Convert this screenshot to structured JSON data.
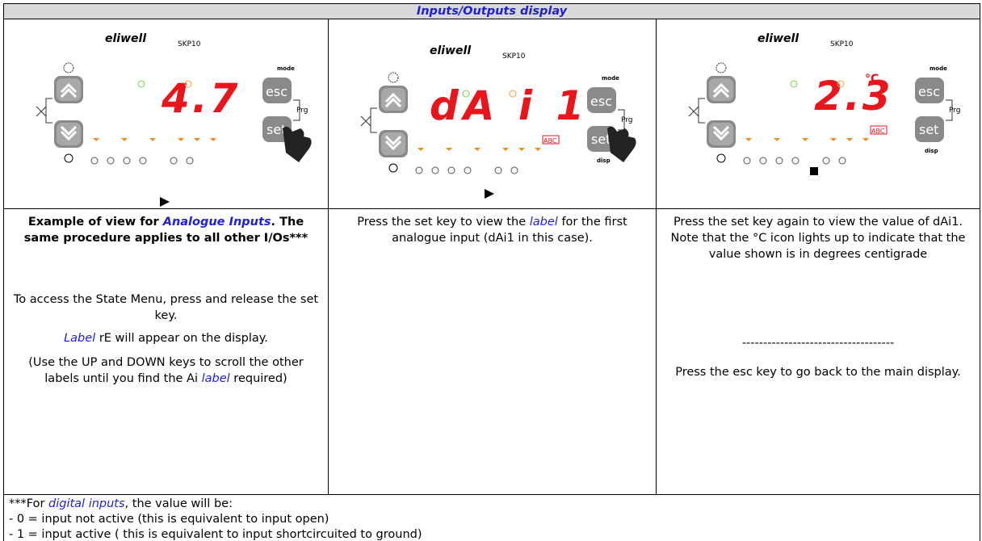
{
  "header": {
    "title": "Inputs/Outputs display"
  },
  "panels": [
    {
      "brand": "eliwell",
      "model": "SKP10",
      "mode": "mode",
      "esc": "esc",
      "prg": "Prg",
      "set": "set",
      "display": "4.7"
    },
    {
      "brand": "eliwell",
      "model": "SKP10",
      "mode": "mode",
      "esc": "esc",
      "prg": "Prg",
      "set": "set",
      "disp": "disp",
      "display": "dA i 1",
      "badge": "ABC"
    },
    {
      "brand": "eliwell",
      "model": "SKP10",
      "mode": "mode",
      "esc": "esc",
      "prg": "Prg",
      "set": "set",
      "disp": "disp",
      "display": "2.3",
      "unit": "°C",
      "badge": "ABC"
    }
  ],
  "descriptions": [
    [
      [
        "Example of view for ",
        {
          "link": "Analogue Inputs"
        },
        ". The same procedure applies to all other I/Os***"
      ],
      [
        "To access the State Menu, press and release the set key."
      ],
      [
        {
          "link": "Label"
        },
        " rE will appear on the display."
      ],
      [
        "(Use the UP and DOWN keys to scroll the other labels until you find the Ai ",
        {
          "link": "label"
        },
        " required)"
      ]
    ],
    [
      [
        "Press the set key to view the ",
        {
          "link": "label"
        },
        " for the first analogue input (dAi1 in this case)."
      ]
    ],
    [
      [
        "Press the set key again to view the value of dAi1. Note that the °C icon lights up to indicate that the value shown is in degrees centigrade"
      ],
      [
        "------------------------------------"
      ],
      [
        "Press the esc key to go back to the main display."
      ]
    ]
  ],
  "footer": [
    [
      "***For ",
      {
        "link": "digital inputs"
      },
      ", the value will be:"
    ],
    [
      "- 0 = input not active (this is equivalent to input open)"
    ],
    [
      "- 1 = input active ( this is equivalent to input shortcircuited to ground)"
    ]
  ]
}
